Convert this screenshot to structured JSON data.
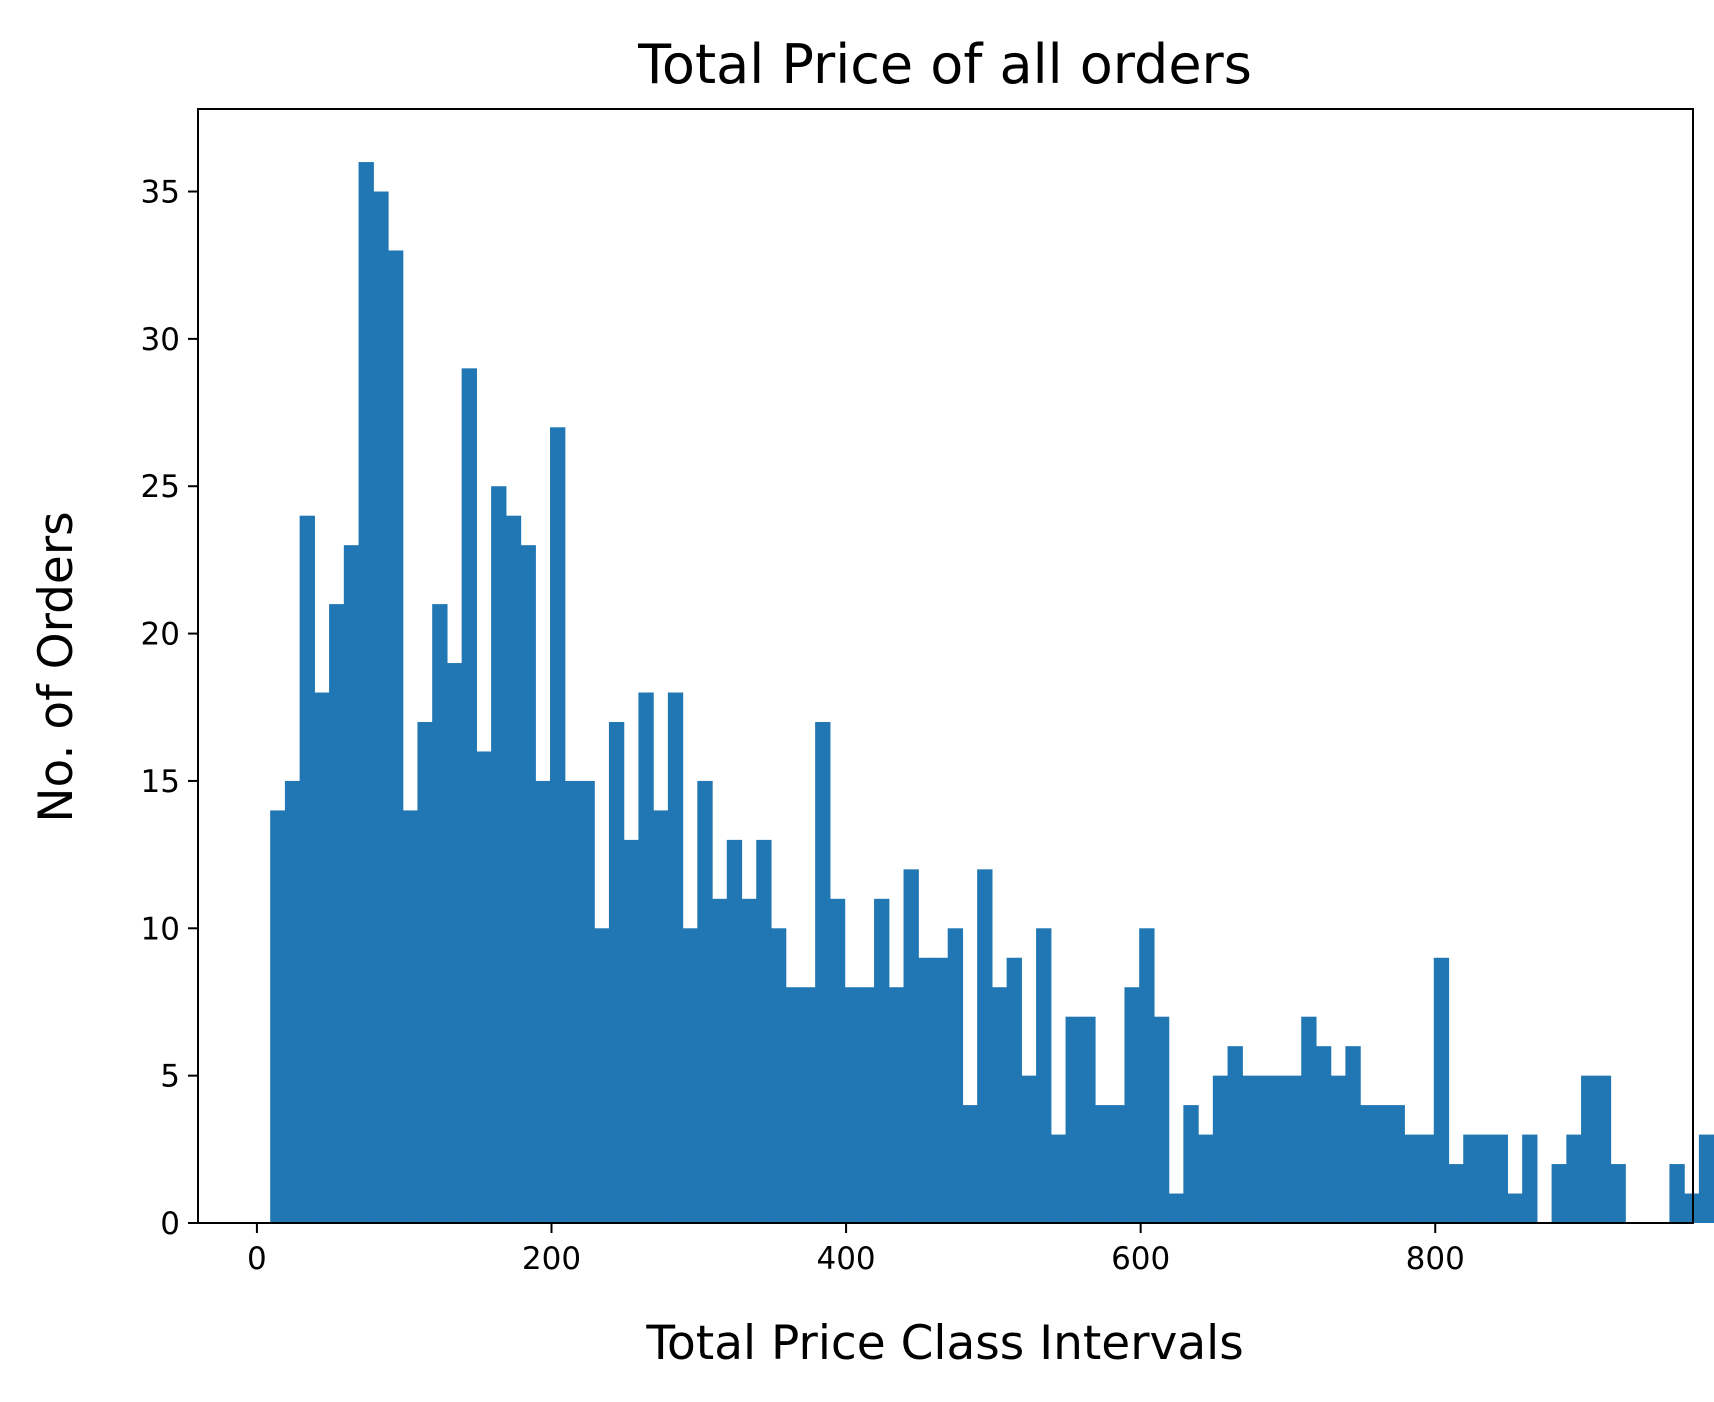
{
  "chart_data": {
    "type": "bar",
    "subtype": "histogram",
    "title": "Total Price of all orders",
    "xlabel": "Total Price Class Intervals",
    "ylabel": "No. of Orders",
    "xlim": [
      -40,
      975
    ],
    "ylim": [
      0,
      37.8
    ],
    "xticks": [
      0,
      200,
      400,
      600,
      800
    ],
    "yticks": [
      0,
      5,
      10,
      15,
      20,
      25,
      30,
      35
    ],
    "bin_start": 9,
    "bin_width": 10,
    "grid": false,
    "bar_color": "#2177b4",
    "values": [
      14,
      15,
      24,
      18,
      21,
      23,
      36,
      35,
      33,
      14,
      17,
      21,
      19,
      29,
      16,
      25,
      24,
      23,
      15,
      27,
      15,
      15,
      10,
      17,
      13,
      18,
      14,
      18,
      10,
      15,
      11,
      13,
      11,
      13,
      10,
      8,
      8,
      17,
      11,
      8,
      8,
      11,
      8,
      12,
      9,
      9,
      10,
      4,
      12,
      8,
      9,
      5,
      10,
      3,
      7,
      7,
      4,
      4,
      8,
      10,
      7,
      1,
      4,
      3,
      5,
      6,
      5,
      5,
      5,
      5,
      7,
      6,
      5,
      6,
      4,
      4,
      4,
      3,
      3,
      9,
      2,
      3,
      3,
      3,
      1,
      3,
      0,
      2,
      3,
      5,
      5,
      2,
      0,
      0,
      0,
      2,
      1,
      3,
      3
    ]
  }
}
